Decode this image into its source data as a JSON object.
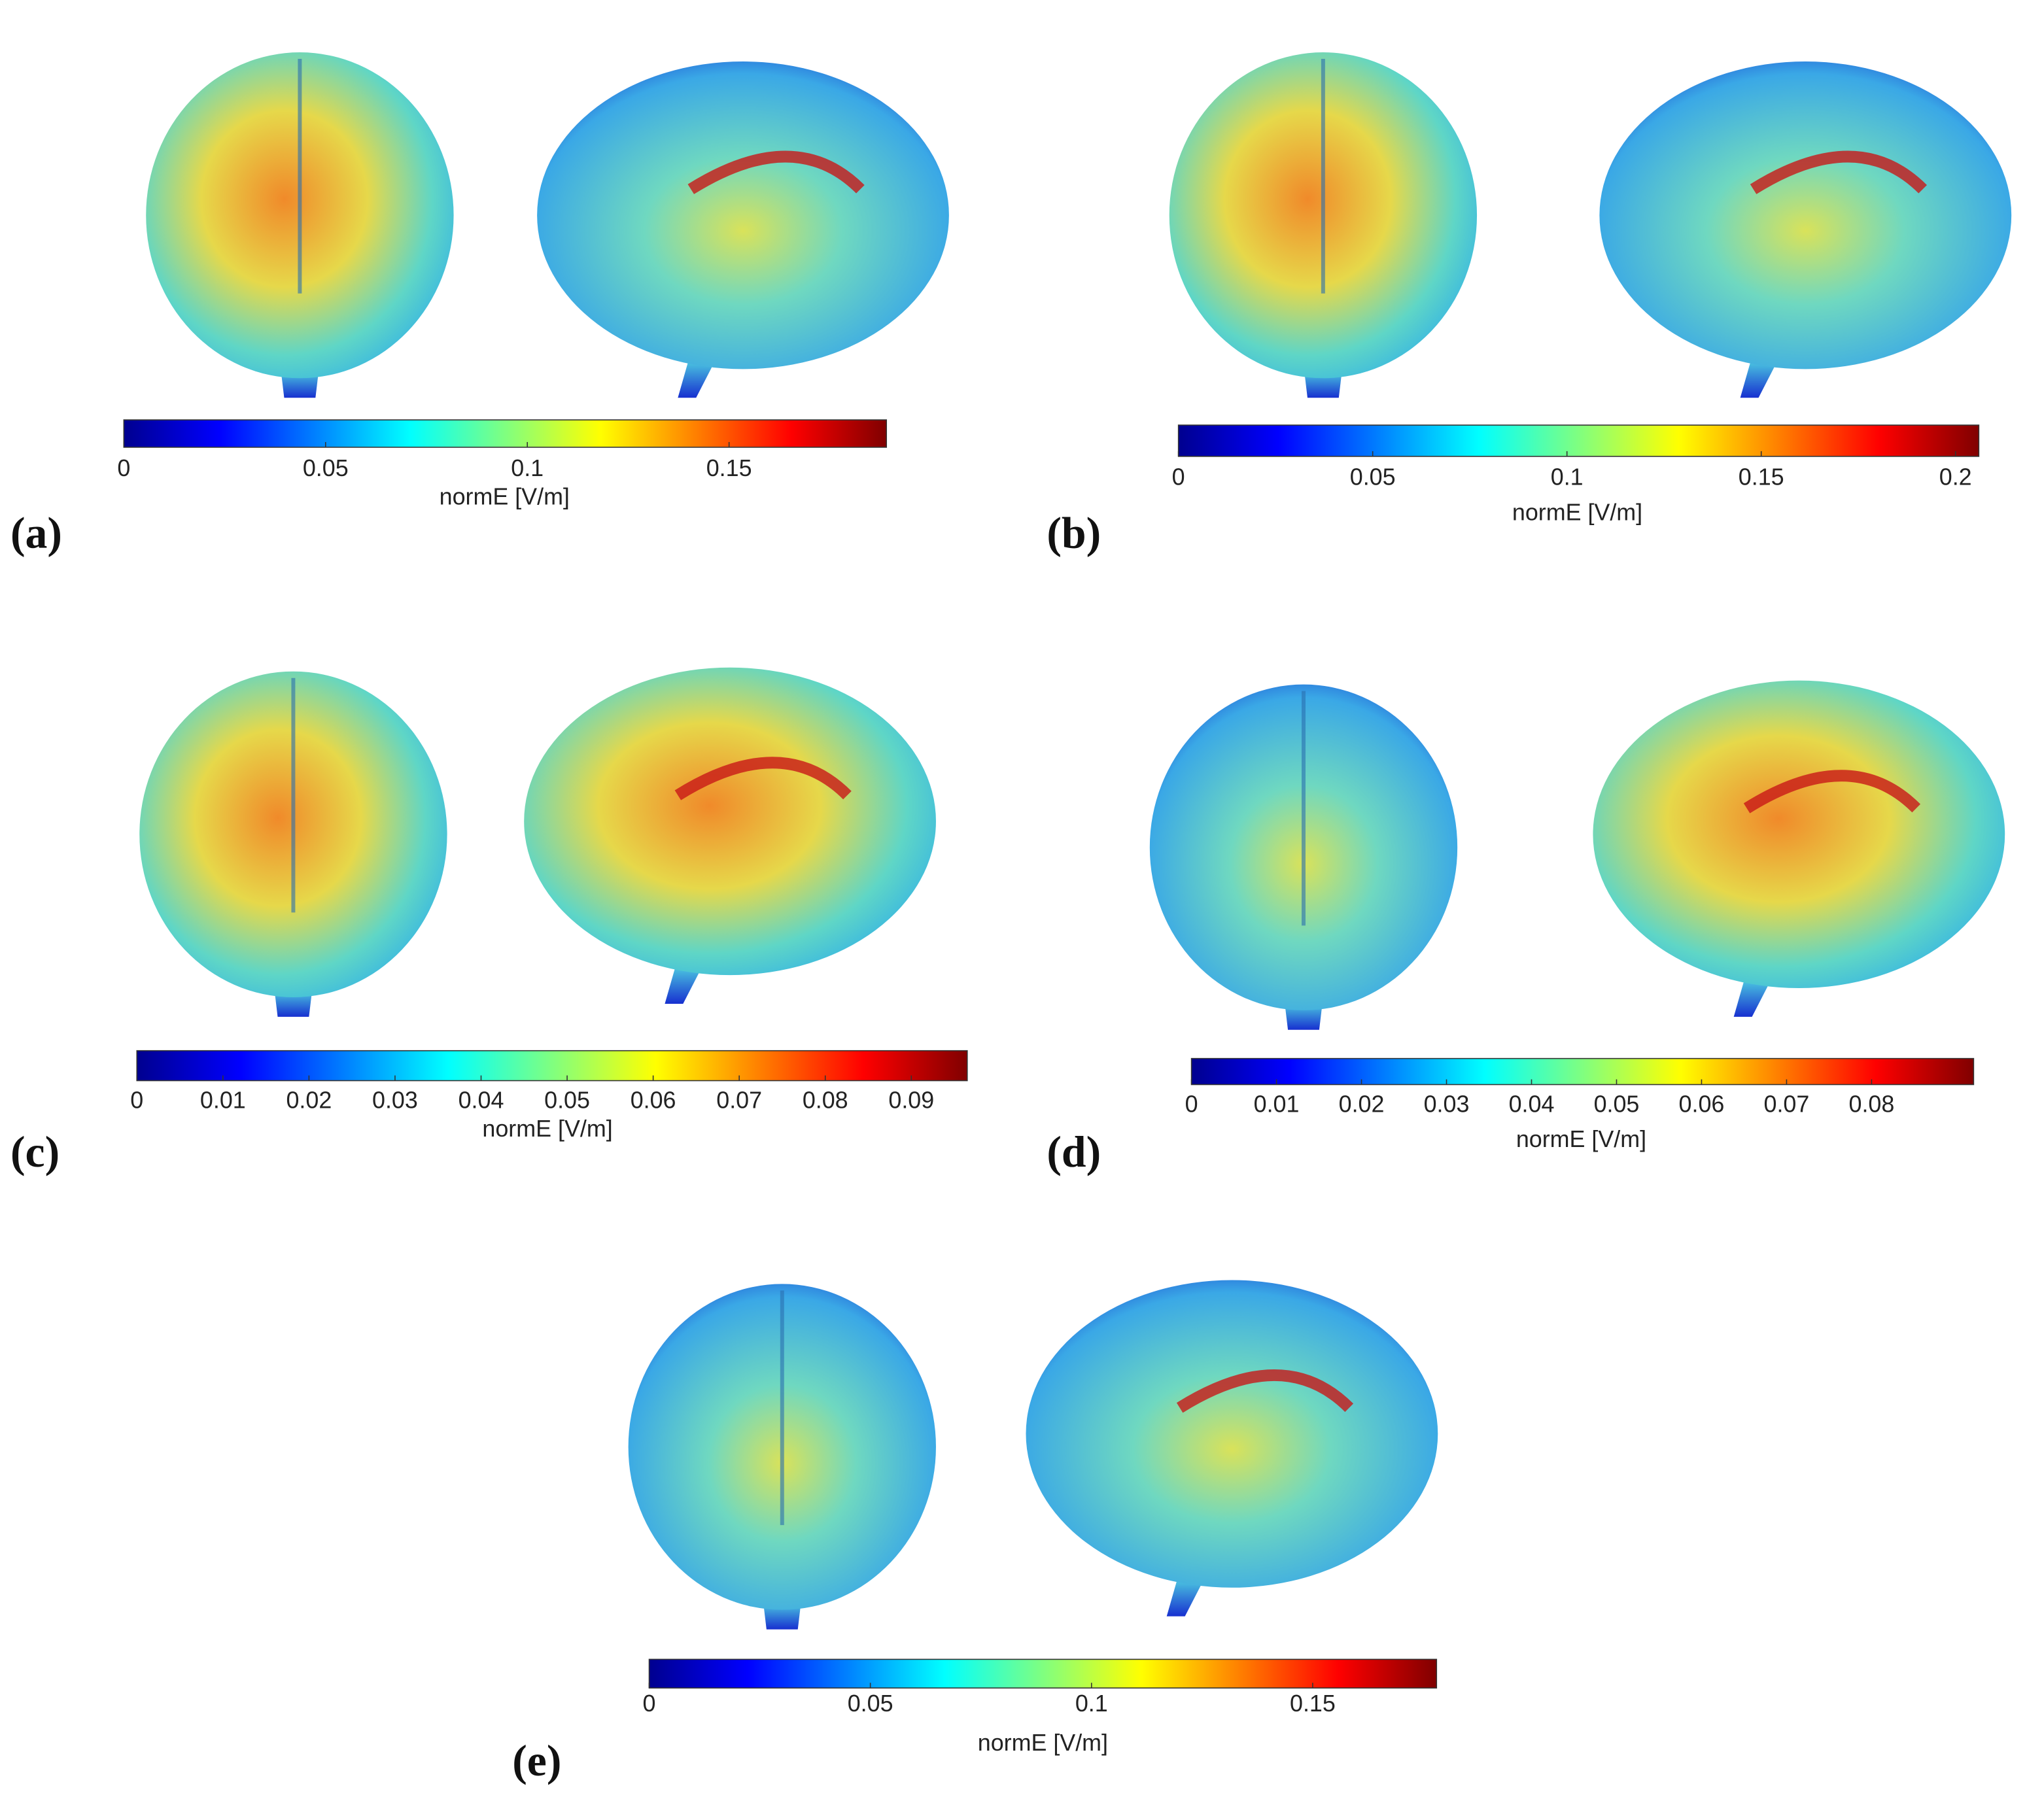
{
  "panels": [
    {
      "label": "(a)",
      "colorbar": {
        "label": "normE [V/m]",
        "lim": [
          0,
          0.189
        ],
        "ticks": [
          0,
          0.05,
          0.1,
          0.15
        ]
      }
    },
    {
      "label": "(b)",
      "colorbar": {
        "label": "normE [V/m]",
        "lim": [
          0,
          0.206
        ],
        "ticks": [
          0,
          0.05,
          0.1,
          0.15,
          0.2
        ]
      }
    },
    {
      "label": "(c)",
      "colorbar": {
        "label": "normE [V/m]",
        "lim": [
          0,
          0.0965
        ],
        "ticks": [
          0,
          0.01,
          0.02,
          0.03,
          0.04,
          0.05,
          0.06,
          0.07,
          0.08,
          0.09
        ]
      }
    },
    {
      "label": "(d)",
      "colorbar": {
        "label": "normE [V/m]",
        "lim": [
          0,
          0.092
        ],
        "ticks": [
          0,
          0.01,
          0.02,
          0.03,
          0.04,
          0.05,
          0.06,
          0.07,
          0.08
        ]
      }
    },
    {
      "label": "(e)",
      "colorbar": {
        "label": "normE [V/m]",
        "lim": [
          0,
          0.178
        ],
        "ticks": [
          0,
          0.05,
          0.1,
          0.15
        ]
      }
    }
  ]
}
